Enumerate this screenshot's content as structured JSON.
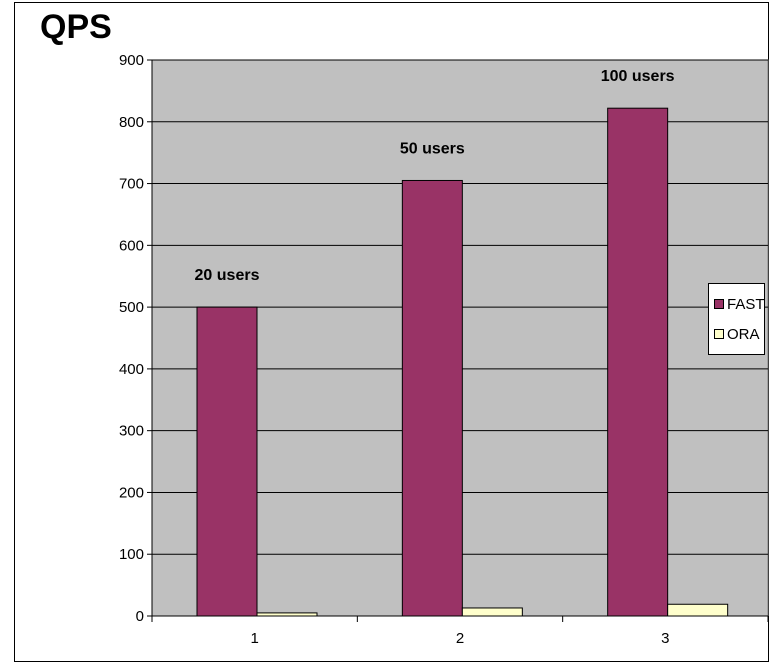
{
  "chart_data": {
    "type": "bar",
    "title": "QPS",
    "categories": [
      "1",
      "2",
      "3"
    ],
    "series": [
      {
        "name": "FAST",
        "values": [
          500,
          705,
          822
        ],
        "color": "#993366"
      },
      {
        "name": "ORA",
        "values": [
          5,
          13,
          19
        ],
        "color": "#FFFFCC"
      }
    ],
    "data_labels": [
      "20 users",
      "50 users",
      "100 users"
    ],
    "xlabel": "",
    "ylabel": "",
    "ylim": [
      0,
      900
    ],
    "yticks": [
      0,
      100,
      200,
      300,
      400,
      500,
      600,
      700,
      800,
      900
    ],
    "grid": true,
    "plot_background": "#C0C0C0",
    "legend_position": "right"
  }
}
